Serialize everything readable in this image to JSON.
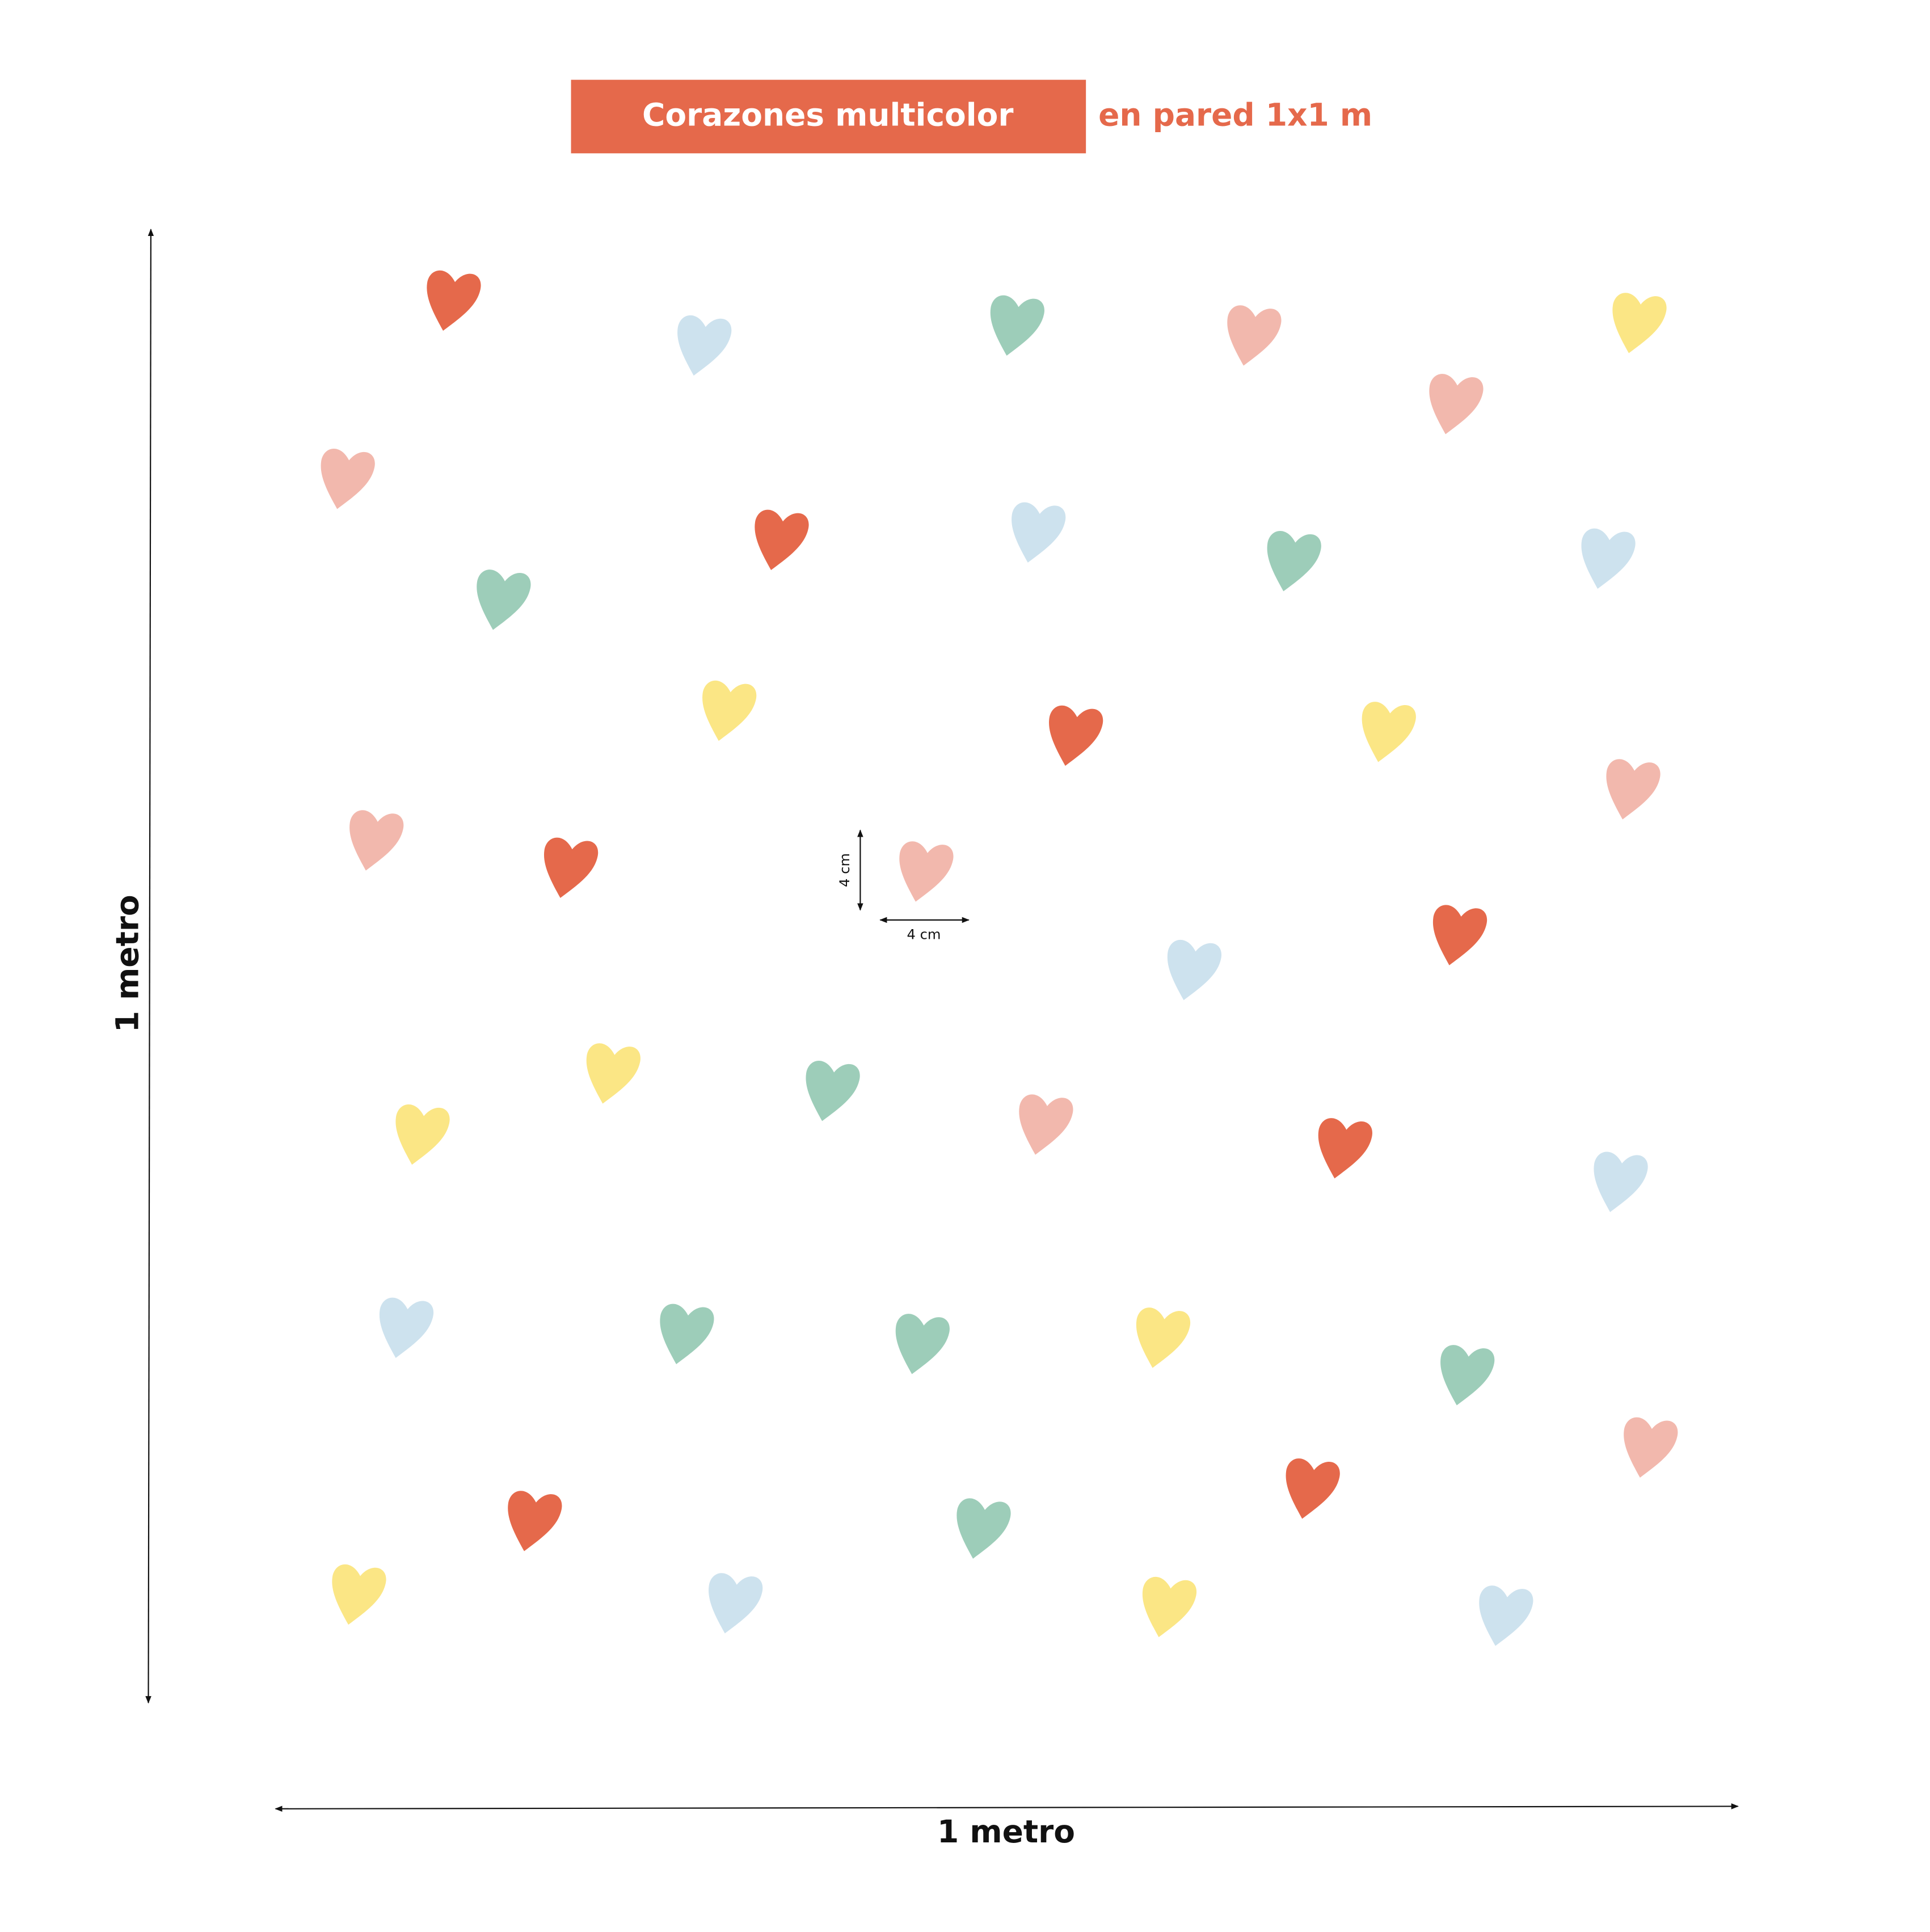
{
  "header": {
    "title": "Corazones multicolor",
    "subtitle": "en pared 1x1 m"
  },
  "dimensions": {
    "height_label": "1 metro",
    "width_label": "1 metro",
    "heart_height_label": "4 cm",
    "heart_width_label": "4 cm"
  }
}
